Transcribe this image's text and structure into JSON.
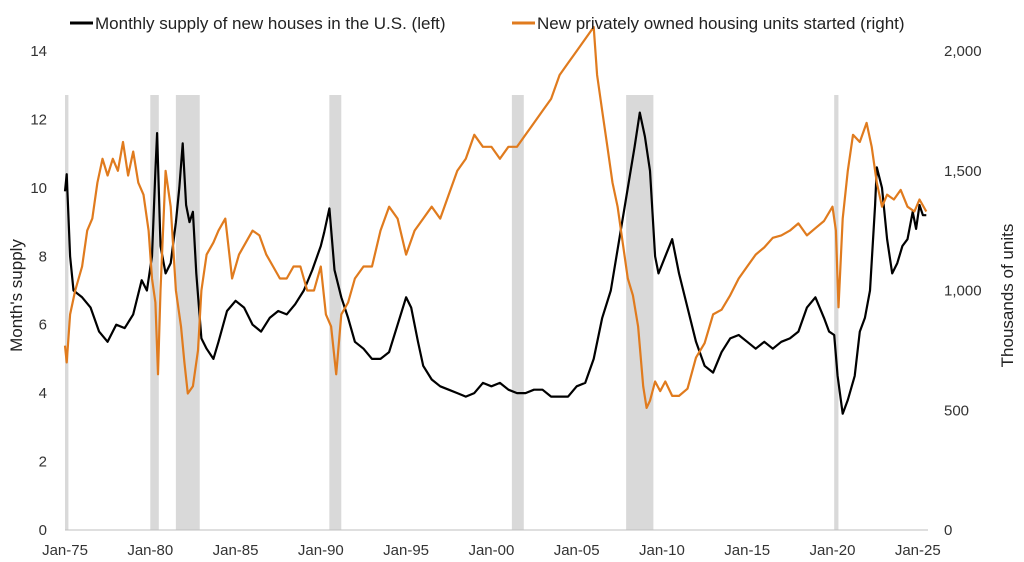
{
  "chart_data": {
    "type": "line",
    "title": "",
    "legend_position": "top",
    "xlabel": "",
    "ylabel": "Month's supply",
    "y2label": "Thousands of units",
    "ylim": [
      0,
      14
    ],
    "y2lim": [
      0,
      2000
    ],
    "grid": false,
    "x_range": [
      1975.0,
      2025.6
    ],
    "x_ticks": [
      1975,
      1980,
      1985,
      1990,
      1995,
      2000,
      2005,
      2010,
      2015,
      2020,
      2025
    ],
    "x_tick_labels": [
      "Jan-75",
      "Jan-80",
      "Jan-85",
      "Jan-90",
      "Jan-95",
      "Jan-00",
      "Jan-05",
      "Jan-10",
      "Jan-15",
      "Jan-20",
      "Jan-25"
    ],
    "y_ticks": [
      0,
      2,
      4,
      6,
      8,
      10,
      12,
      14
    ],
    "y_tick_labels": [
      "0",
      "2",
      "4",
      "6",
      "8",
      "10",
      "12",
      "14"
    ],
    "y2_ticks": [
      0,
      500,
      1000,
      1500,
      2000
    ],
    "y2_tick_labels": [
      "0",
      "500",
      "1,000",
      "1,500",
      "2,000"
    ],
    "recessions": [
      [
        1975.0,
        1975.2
      ],
      [
        1980.0,
        1980.5
      ],
      [
        1981.5,
        1982.9
      ],
      [
        1990.5,
        1991.2
      ],
      [
        2001.2,
        2001.9
      ],
      [
        2007.9,
        2009.5
      ],
      [
        2020.1,
        2020.35
      ]
    ],
    "series": [
      {
        "name": "Monthly supply of new houses in the U.S. (left)",
        "color": "#000000",
        "axis": "left",
        "points": [
          [
            1975.0,
            9.9
          ],
          [
            1975.1,
            10.4
          ],
          [
            1975.3,
            8.0
          ],
          [
            1975.5,
            7.0
          ],
          [
            1976.0,
            6.8
          ],
          [
            1976.5,
            6.5
          ],
          [
            1977.0,
            5.8
          ],
          [
            1977.5,
            5.5
          ],
          [
            1978.0,
            6.0
          ],
          [
            1978.5,
            5.9
          ],
          [
            1979.0,
            6.3
          ],
          [
            1979.5,
            7.3
          ],
          [
            1979.8,
            7.0
          ],
          [
            1980.1,
            8.0
          ],
          [
            1980.3,
            10.5
          ],
          [
            1980.4,
            11.6
          ],
          [
            1980.6,
            8.3
          ],
          [
            1980.9,
            7.5
          ],
          [
            1981.2,
            7.8
          ],
          [
            1981.5,
            9.0
          ],
          [
            1981.7,
            10.0
          ],
          [
            1981.9,
            11.3
          ],
          [
            1982.1,
            9.5
          ],
          [
            1982.3,
            9.0
          ],
          [
            1982.5,
            9.3
          ],
          [
            1982.7,
            7.5
          ],
          [
            1983.0,
            5.6
          ],
          [
            1983.3,
            5.3
          ],
          [
            1983.7,
            5.0
          ],
          [
            1984.0,
            5.5
          ],
          [
            1984.5,
            6.4
          ],
          [
            1985.0,
            6.7
          ],
          [
            1985.5,
            6.5
          ],
          [
            1986.0,
            6.0
          ],
          [
            1986.5,
            5.8
          ],
          [
            1987.0,
            6.2
          ],
          [
            1987.5,
            6.4
          ],
          [
            1988.0,
            6.3
          ],
          [
            1988.5,
            6.6
          ],
          [
            1989.0,
            7.0
          ],
          [
            1989.5,
            7.6
          ],
          [
            1990.0,
            8.3
          ],
          [
            1990.2,
            8.7
          ],
          [
            1990.5,
            9.4
          ],
          [
            1990.8,
            7.6
          ],
          [
            1991.2,
            6.8
          ],
          [
            1991.6,
            6.2
          ],
          [
            1992.0,
            5.5
          ],
          [
            1992.5,
            5.3
          ],
          [
            1993.0,
            5.0
          ],
          [
            1993.5,
            5.0
          ],
          [
            1994.0,
            5.2
          ],
          [
            1994.5,
            6.0
          ],
          [
            1995.0,
            6.8
          ],
          [
            1995.3,
            6.5
          ],
          [
            1995.7,
            5.5
          ],
          [
            1996.0,
            4.8
          ],
          [
            1996.5,
            4.4
          ],
          [
            1997.0,
            4.2
          ],
          [
            1997.5,
            4.1
          ],
          [
            1998.0,
            4.0
          ],
          [
            1998.5,
            3.9
          ],
          [
            1999.0,
            4.0
          ],
          [
            1999.5,
            4.3
          ],
          [
            2000.0,
            4.2
          ],
          [
            2000.5,
            4.3
          ],
          [
            2001.0,
            4.1
          ],
          [
            2001.5,
            4.0
          ],
          [
            2002.0,
            4.0
          ],
          [
            2002.5,
            4.1
          ],
          [
            2003.0,
            4.1
          ],
          [
            2003.5,
            3.9
          ],
          [
            2004.0,
            3.9
          ],
          [
            2004.5,
            3.9
          ],
          [
            2005.0,
            4.2
          ],
          [
            2005.5,
            4.3
          ],
          [
            2006.0,
            5.0
          ],
          [
            2006.5,
            6.2
          ],
          [
            2007.0,
            7.0
          ],
          [
            2007.5,
            8.5
          ],
          [
            2008.0,
            10.0
          ],
          [
            2008.4,
            11.2
          ],
          [
            2008.7,
            12.2
          ],
          [
            2009.0,
            11.5
          ],
          [
            2009.3,
            10.5
          ],
          [
            2009.6,
            8.0
          ],
          [
            2009.8,
            7.5
          ],
          [
            2010.2,
            8.0
          ],
          [
            2010.6,
            8.5
          ],
          [
            2011.0,
            7.5
          ],
          [
            2011.5,
            6.5
          ],
          [
            2012.0,
            5.5
          ],
          [
            2012.5,
            4.8
          ],
          [
            2013.0,
            4.6
          ],
          [
            2013.5,
            5.2
          ],
          [
            2014.0,
            5.6
          ],
          [
            2014.5,
            5.7
          ],
          [
            2015.0,
            5.5
          ],
          [
            2015.5,
            5.3
          ],
          [
            2016.0,
            5.5
          ],
          [
            2016.5,
            5.3
          ],
          [
            2017.0,
            5.5
          ],
          [
            2017.5,
            5.6
          ],
          [
            2018.0,
            5.8
          ],
          [
            2018.5,
            6.5
          ],
          [
            2019.0,
            6.8
          ],
          [
            2019.5,
            6.2
          ],
          [
            2019.8,
            5.8
          ],
          [
            2020.1,
            5.7
          ],
          [
            2020.3,
            4.5
          ],
          [
            2020.6,
            3.4
          ],
          [
            2020.9,
            3.8
          ],
          [
            2021.3,
            4.5
          ],
          [
            2021.6,
            5.8
          ],
          [
            2021.9,
            6.2
          ],
          [
            2022.2,
            7.0
          ],
          [
            2022.5,
            9.5
          ],
          [
            2022.6,
            10.6
          ],
          [
            2022.9,
            10.0
          ],
          [
            2023.2,
            8.5
          ],
          [
            2023.5,
            7.5
          ],
          [
            2023.8,
            7.8
          ],
          [
            2024.1,
            8.3
          ],
          [
            2024.4,
            8.5
          ],
          [
            2024.7,
            9.3
          ],
          [
            2024.9,
            8.8
          ],
          [
            2025.1,
            9.5
          ],
          [
            2025.3,
            9.2
          ],
          [
            2025.5,
            9.2
          ]
        ]
      },
      {
        "name": "New privately owned housing units started (right)",
        "color": "#E07B1E",
        "axis": "right",
        "points": [
          [
            1975.0,
            770
          ],
          [
            1975.1,
            700
          ],
          [
            1975.3,
            900
          ],
          [
            1975.6,
            1000
          ],
          [
            1976.0,
            1100
          ],
          [
            1976.3,
            1250
          ],
          [
            1976.6,
            1300
          ],
          [
            1976.9,
            1450
          ],
          [
            1977.2,
            1550
          ],
          [
            1977.5,
            1480
          ],
          [
            1977.8,
            1550
          ],
          [
            1978.1,
            1500
          ],
          [
            1978.4,
            1620
          ],
          [
            1978.7,
            1480
          ],
          [
            1979.0,
            1580
          ],
          [
            1979.3,
            1450
          ],
          [
            1979.6,
            1400
          ],
          [
            1979.9,
            1250
          ],
          [
            1980.1,
            1050
          ],
          [
            1980.3,
            950
          ],
          [
            1980.45,
            650
          ],
          [
            1980.6,
            1000
          ],
          [
            1980.9,
            1500
          ],
          [
            1981.2,
            1350
          ],
          [
            1981.5,
            1000
          ],
          [
            1981.8,
            850
          ],
          [
            1982.0,
            700
          ],
          [
            1982.2,
            570
          ],
          [
            1982.5,
            600
          ],
          [
            1982.8,
            750
          ],
          [
            1983.0,
            1000
          ],
          [
            1983.3,
            1150
          ],
          [
            1983.7,
            1200
          ],
          [
            1984.0,
            1250
          ],
          [
            1984.4,
            1300
          ],
          [
            1984.8,
            1050
          ],
          [
            1985.2,
            1150
          ],
          [
            1985.6,
            1200
          ],
          [
            1986.0,
            1250
          ],
          [
            1986.4,
            1230
          ],
          [
            1986.8,
            1150
          ],
          [
            1987.2,
            1100
          ],
          [
            1987.6,
            1050
          ],
          [
            1988.0,
            1050
          ],
          [
            1988.4,
            1100
          ],
          [
            1988.8,
            1100
          ],
          [
            1989.2,
            1000
          ],
          [
            1989.6,
            1000
          ],
          [
            1990.0,
            1100
          ],
          [
            1990.3,
            900
          ],
          [
            1990.6,
            850
          ],
          [
            1990.9,
            650
          ],
          [
            1991.2,
            900
          ],
          [
            1991.6,
            950
          ],
          [
            1992.0,
            1050
          ],
          [
            1992.5,
            1100
          ],
          [
            1993.0,
            1100
          ],
          [
            1993.5,
            1250
          ],
          [
            1994.0,
            1350
          ],
          [
            1994.5,
            1300
          ],
          [
            1995.0,
            1150
          ],
          [
            1995.5,
            1250
          ],
          [
            1996.0,
            1300
          ],
          [
            1996.5,
            1350
          ],
          [
            1997.0,
            1300
          ],
          [
            1997.5,
            1400
          ],
          [
            1998.0,
            1500
          ],
          [
            1998.5,
            1550
          ],
          [
            1999.0,
            1650
          ],
          [
            1999.5,
            1600
          ],
          [
            2000.0,
            1600
          ],
          [
            2000.5,
            1550
          ],
          [
            2001.0,
            1600
          ],
          [
            2001.5,
            1600
          ],
          [
            2002.0,
            1650
          ],
          [
            2002.5,
            1700
          ],
          [
            2003.0,
            1750
          ],
          [
            2003.5,
            1800
          ],
          [
            2004.0,
            1900
          ],
          [
            2004.5,
            1950
          ],
          [
            2005.0,
            2000
          ],
          [
            2005.5,
            2050
          ],
          [
            2006.0,
            2100
          ],
          [
            2006.2,
            1900
          ],
          [
            2006.5,
            1750
          ],
          [
            2006.8,
            1600
          ],
          [
            2007.1,
            1450
          ],
          [
            2007.4,
            1350
          ],
          [
            2007.7,
            1200
          ],
          [
            2008.0,
            1050
          ],
          [
            2008.3,
            980
          ],
          [
            2008.6,
            850
          ],
          [
            2008.9,
            600
          ],
          [
            2009.1,
            510
          ],
          [
            2009.3,
            540
          ],
          [
            2009.6,
            620
          ],
          [
            2009.9,
            580
          ],
          [
            2010.2,
            620
          ],
          [
            2010.6,
            560
          ],
          [
            2011.0,
            560
          ],
          [
            2011.5,
            590
          ],
          [
            2012.0,
            720
          ],
          [
            2012.5,
            780
          ],
          [
            2013.0,
            900
          ],
          [
            2013.5,
            920
          ],
          [
            2014.0,
            980
          ],
          [
            2014.5,
            1050
          ],
          [
            2015.0,
            1100
          ],
          [
            2015.5,
            1150
          ],
          [
            2016.0,
            1180
          ],
          [
            2016.5,
            1220
          ],
          [
            2017.0,
            1230
          ],
          [
            2017.5,
            1250
          ],
          [
            2018.0,
            1280
          ],
          [
            2018.5,
            1230
          ],
          [
            2019.0,
            1260
          ],
          [
            2019.5,
            1290
          ],
          [
            2020.0,
            1350
          ],
          [
            2020.2,
            1250
          ],
          [
            2020.35,
            930
          ],
          [
            2020.6,
            1300
          ],
          [
            2020.9,
            1500
          ],
          [
            2021.2,
            1650
          ],
          [
            2021.6,
            1620
          ],
          [
            2022.0,
            1700
          ],
          [
            2022.3,
            1600
          ],
          [
            2022.6,
            1450
          ],
          [
            2022.9,
            1350
          ],
          [
            2023.2,
            1400
          ],
          [
            2023.6,
            1380
          ],
          [
            2024.0,
            1420
          ],
          [
            2024.4,
            1350
          ],
          [
            2024.8,
            1330
          ],
          [
            2025.1,
            1380
          ],
          [
            2025.5,
            1330
          ]
        ]
      }
    ]
  }
}
